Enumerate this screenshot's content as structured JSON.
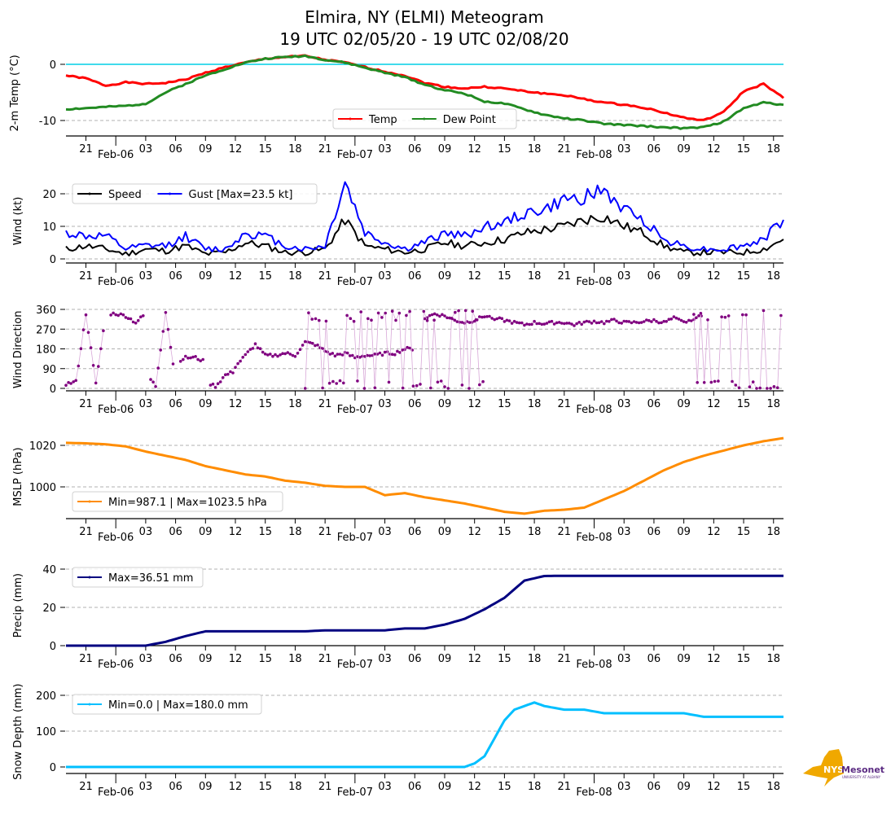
{
  "chart_data": [
    {
      "id": "temp",
      "type": "line",
      "title": "Elmira, NY (ELMI) Meteogram",
      "subtitle": "19 UTC 02/05/20 - 19 UTC 02/08/20",
      "ylabel": "2-m Temp (°C)",
      "ylim": [
        -12.5,
        2.5
      ],
      "yticks": [
        0,
        -10
      ],
      "grid": true,
      "zero_line_color": "#00cfe6",
      "legend_position": "bottom-center",
      "x_hours": [
        0,
        2,
        4,
        6,
        8,
        10,
        12,
        14,
        16,
        18,
        20,
        22,
        24,
        26,
        28,
        30,
        32,
        34,
        36,
        38,
        40,
        42,
        44,
        46,
        48,
        50,
        52,
        54,
        56,
        58,
        60,
        62,
        64,
        66,
        68,
        70,
        72
      ],
      "series": [
        {
          "name": "Temp",
          "color": "#ff0000",
          "values": [
            -2.0,
            -2.5,
            -3.8,
            -3.2,
            -3.5,
            -3.3,
            -2.7,
            -1.5,
            -0.5,
            0.3,
            1.0,
            1.3,
            1.5,
            0.8,
            0.3,
            -0.5,
            -1.3,
            -2.0,
            -3.3,
            -4.0,
            -4.3,
            -4.0,
            -4.3,
            -4.8,
            -5.2,
            -5.5,
            -6.2,
            -6.8,
            -7.2,
            -7.7,
            -8.6,
            -9.5,
            -10.0,
            -8.5,
            -4.8,
            -3.5,
            -6.0
          ]
        },
        {
          "name": "Dew Point",
          "color": "#228b22",
          "values": [
            -8.0,
            -7.8,
            -7.6,
            -7.4,
            -7.0,
            -5.0,
            -3.5,
            -2.0,
            -0.8,
            0.3,
            1.0,
            1.3,
            1.5,
            0.8,
            0.3,
            -0.6,
            -1.5,
            -2.3,
            -3.6,
            -4.6,
            -5.2,
            -6.6,
            -7.0,
            -8.0,
            -9.0,
            -9.6,
            -10.0,
            -10.6,
            -10.8,
            -11.0,
            -11.2,
            -11.4,
            -11.2,
            -10.2,
            -7.8,
            -6.8,
            -7.2
          ]
        }
      ]
    },
    {
      "id": "wind",
      "type": "line",
      "ylabel": "Wind (kt)",
      "ylim": [
        -0.8,
        24.5
      ],
      "yticks": [
        0,
        10,
        20
      ],
      "grid": true,
      "legend_position": "top-left",
      "x_hours": [
        0,
        2,
        4,
        6,
        8,
        10,
        12,
        14,
        16,
        18,
        20,
        22,
        24,
        26,
        28,
        30,
        32,
        34,
        36,
        38,
        40,
        42,
        44,
        46,
        48,
        50,
        52,
        54,
        56,
        58,
        60,
        62,
        64,
        66,
        68,
        70,
        72
      ],
      "series": [
        {
          "name": "Speed",
          "color": "#000000",
          "values": [
            3,
            4,
            3,
            1.5,
            3,
            2.5,
            4,
            1.5,
            2,
            5,
            4,
            2,
            2,
            3,
            12,
            4,
            3,
            2,
            3,
            5,
            4,
            5,
            6,
            8,
            9,
            10,
            12,
            13,
            10,
            8,
            4,
            2,
            2,
            2,
            2,
            3,
            6
          ]
        },
        {
          "name": "Gust [Max=23.5 kt]",
          "color": "#0000ff",
          "values": [
            8,
            7,
            7,
            3,
            4,
            4,
            7,
            3,
            3,
            8,
            7,
            4,
            3,
            4,
            23.5,
            8,
            5,
            3,
            5,
            8,
            7,
            10,
            11,
            14,
            15,
            18,
            19,
            21,
            15,
            12,
            6,
            4,
            3,
            3,
            4,
            6,
            12
          ]
        }
      ]
    },
    {
      "id": "wind_direction",
      "type": "scatter",
      "ylabel": "Wind Direction",
      "ylim": [
        -5,
        365
      ],
      "yticks": [
        0,
        90,
        180,
        270,
        360
      ],
      "grid": true,
      "color": "#800080",
      "segments": [
        {
          "x_hours": [
            0,
            1,
            2,
            3,
            4
          ],
          "values": [
            20,
            30,
            340,
            20,
            340
          ]
        },
        {
          "x_hours": [
            4.5,
            5,
            6,
            7,
            8
          ],
          "values": [
            340,
            340,
            330,
            300,
            340
          ]
        },
        {
          "x_hours": [
            8.5,
            9,
            10,
            11
          ],
          "values": [
            40,
            10,
            350,
            30
          ]
        },
        {
          "x_hours": [
            11.5,
            12,
            13,
            14
          ],
          "values": [
            130,
            140,
            140,
            120
          ]
        },
        {
          "x_hours": [
            14.5,
            15,
            16,
            17
          ],
          "values": [
            20,
            10,
            60,
            80
          ]
        },
        {
          "x_hours": [
            17,
            18,
            19,
            20,
            21,
            22,
            23,
            24,
            25,
            26,
            27,
            28,
            29,
            30,
            31,
            32,
            33,
            34,
            35
          ],
          "values": [
            100,
            150,
            200,
            150,
            150,
            160,
            150,
            210,
            200,
            170,
            150,
            160,
            140,
            150,
            150,
            160,
            160,
            180,
            180
          ]
        },
        {
          "x_hours": [
            36,
            37,
            38,
            39,
            40,
            41,
            42,
            43,
            44,
            45,
            46,
            47,
            48,
            49,
            50,
            51,
            52,
            53,
            54,
            55,
            56,
            57,
            58,
            59,
            60,
            61,
            62,
            63,
            64
          ],
          "values": [
            320,
            340,
            330,
            310,
            300,
            310,
            330,
            320,
            310,
            300,
            290,
            300,
            295,
            300,
            300,
            290,
            300,
            305,
            300,
            310,
            300,
            300,
            305,
            310,
            300,
            320,
            300,
            320,
            330
          ]
        }
      ],
      "note": "variable direction 0-360 from ~19Z Feb 6 to ~13Z Feb 7 and after ~10Z Feb 8"
    },
    {
      "id": "mslp",
      "type": "line",
      "ylabel": "MSLP (hPa)",
      "ylim": [
        985,
        1025
      ],
      "yticks": [
        1000,
        1020
      ],
      "grid": true,
      "legend_position": "bottom-left",
      "x_hours": [
        0,
        2,
        4,
        6,
        8,
        10,
        12,
        14,
        16,
        18,
        20,
        22,
        24,
        26,
        28,
        30,
        32,
        34,
        36,
        38,
        40,
        42,
        44,
        46,
        48,
        50,
        52,
        54,
        56,
        58,
        60,
        62,
        64,
        66,
        68,
        70,
        72
      ],
      "series": [
        {
          "name": "Min=987.1 | Max=1023.5 hPa",
          "color": "#ff8c00",
          "values": [
            1021.2,
            1021,
            1020.5,
            1019.5,
            1017,
            1015,
            1013,
            1010,
            1008,
            1006,
            1005,
            1003,
            1002,
            1000.5,
            1000,
            1000,
            996,
            997,
            995,
            993.5,
            992,
            990,
            988,
            987.1,
            988.5,
            989,
            990,
            994,
            998,
            1003,
            1008,
            1012,
            1015,
            1017.5,
            1020,
            1022,
            1023.5
          ]
        }
      ]
    },
    {
      "id": "precip",
      "type": "line",
      "ylabel": "Precip (mm)",
      "ylim": [
        0,
        42
      ],
      "yticks": [
        0,
        20,
        40
      ],
      "grid": true,
      "legend_position": "top-left",
      "x_hours": [
        0,
        4,
        8,
        10,
        12,
        14,
        16,
        18,
        20,
        22,
        24,
        26,
        28,
        30,
        32,
        34,
        36,
        38,
        40,
        42,
        44,
        46,
        48,
        50,
        52,
        54,
        56,
        58,
        60,
        62,
        64,
        66,
        68,
        70,
        72
      ],
      "series": [
        {
          "name": "Max=36.51 mm",
          "color": "#000080",
          "values": [
            0,
            0,
            0,
            2,
            5,
            7.5,
            7.5,
            7.5,
            7.5,
            7.5,
            7.5,
            8,
            8,
            8,
            8,
            9,
            9,
            11,
            14,
            19,
            25,
            34,
            36.4,
            36.5,
            36.5,
            36.5,
            36.5,
            36.5,
            36.5,
            36.5,
            36.5,
            36.5,
            36.5,
            36.5,
            36.51
          ]
        }
      ]
    },
    {
      "id": "snow_depth",
      "type": "line",
      "ylabel": "Snow Depth (mm)",
      "ylim": [
        -20,
        215
      ],
      "yticks": [
        0,
        100,
        200
      ],
      "grid": true,
      "legend_position": "top-left",
      "x_hours": [
        0,
        10,
        20,
        30,
        40,
        41,
        42,
        43,
        44,
        45,
        46,
        47,
        48,
        50,
        52,
        54,
        56,
        58,
        60,
        62,
        64,
        66,
        68,
        70,
        72
      ],
      "series": [
        {
          "name": "Min=0.0 | Max=180.0 mm",
          "color": "#00bfff",
          "values": [
            0,
            0,
            0,
            0,
            0,
            10,
            30,
            80,
            130,
            160,
            170,
            180,
            170,
            160,
            160,
            150,
            150,
            150,
            150,
            150,
            140,
            140,
            140,
            140,
            140
          ]
        }
      ]
    }
  ],
  "x_axis": {
    "hour_ticks": [
      "21",
      "03",
      "06",
      "09",
      "12",
      "15",
      "18",
      "21",
      "03",
      "06",
      "09",
      "12",
      "15",
      "18",
      "21",
      "03",
      "06",
      "09",
      "12",
      "15",
      "18"
    ],
    "hour_tick_offsets": [
      2,
      8,
      11,
      14,
      17,
      20,
      23,
      26,
      32,
      35,
      38,
      41,
      44,
      47,
      50,
      56,
      59,
      62,
      65,
      68,
      71
    ],
    "date_ticks": [
      "Feb-06",
      "Feb-07",
      "Feb-08"
    ],
    "date_tick_offsets": [
      5,
      29,
      53
    ],
    "span_hours": 72
  },
  "logo": {
    "text_main": "NYS",
    "text_brand": "Mesonet",
    "text_sub": "UNIVERSITY AT ALBANY",
    "color_state": "#f0a800",
    "color_brand": "#5a2a82"
  }
}
